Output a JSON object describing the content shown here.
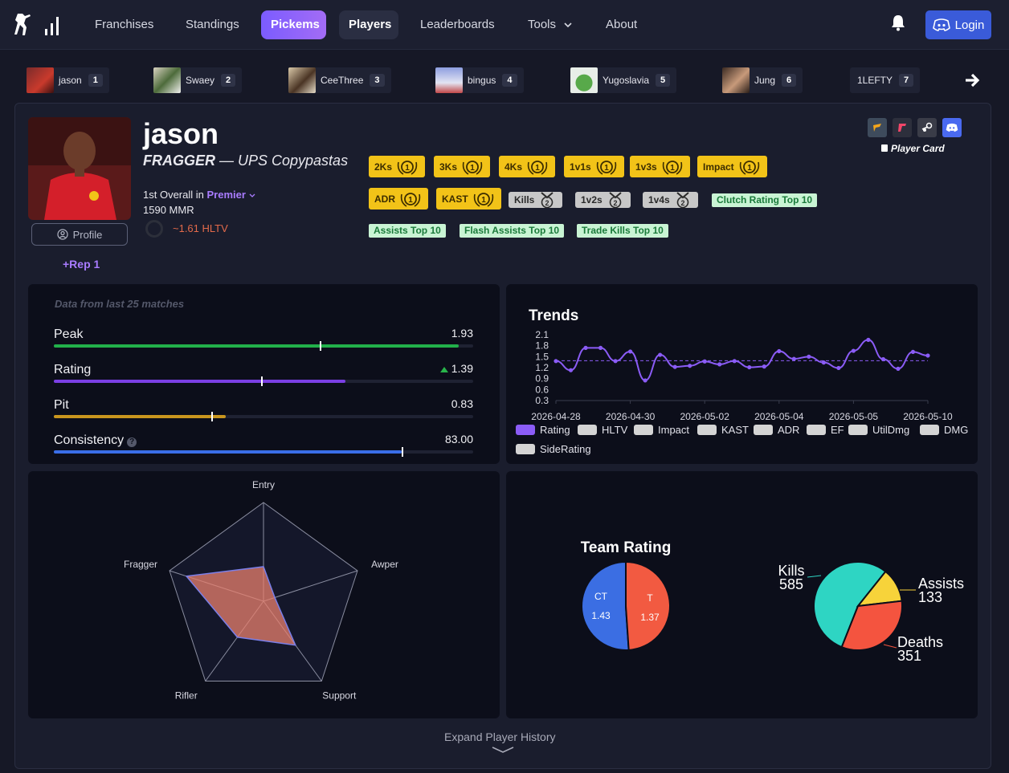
{
  "nav": {
    "items": [
      {
        "label": "Franchises"
      },
      {
        "label": "Standings"
      },
      {
        "label": "Pickems"
      },
      {
        "label": "Players"
      },
      {
        "label": "Leaderboards"
      },
      {
        "label": "Tools"
      },
      {
        "label": "About"
      }
    ],
    "login_label": "Login",
    "accent": "#7b5cff"
  },
  "leaders": [
    {
      "name": "jason",
      "rank": "1"
    },
    {
      "name": "Swaey",
      "rank": "2"
    },
    {
      "name": "CeeThree",
      "rank": "3"
    },
    {
      "name": "bingus",
      "rank": "4"
    },
    {
      "name": "Yugoslavia",
      "rank": "5"
    },
    {
      "name": "Jung",
      "rank": "6"
    },
    {
      "name": "1LEFTY",
      "rank": "7"
    }
  ],
  "player": {
    "name": "jason",
    "role": "FRAGGER",
    "team": " — UPS Copypastas",
    "overall_prefix": "1st Overall in",
    "overall_league": "Premier",
    "mmr": "1590 MMR",
    "hltv": "~1.61 HLTV",
    "profile_label": "Profile",
    "rep": "+Rep 1",
    "player_card": "Player Card"
  },
  "badges": {
    "gold": [
      "2Ks",
      "3Ks",
      "4Ks",
      "1v1s",
      "1v3s",
      "Impact",
      "ADR",
      "KAST"
    ],
    "silver": [
      "Kills",
      "1v2s",
      "1v4s"
    ],
    "tags": [
      "Clutch Rating Top 10",
      "Assists Top 10",
      "Flash Assists Top 10",
      "Trade Kills Top 10"
    ]
  },
  "stats": {
    "note": "Data from last 25 matches",
    "rows": [
      {
        "label": "Peak",
        "value": "1.93",
        "fill": 0.965,
        "marker": 0.635,
        "color": "#22b04a"
      },
      {
        "label": "Rating",
        "value": "1.39",
        "fill": 0.695,
        "marker": 0.495,
        "color": "#7b3fe4",
        "trend": "up"
      },
      {
        "label": "Pit",
        "value": "0.83",
        "fill": 0.41,
        "marker": 0.375,
        "color": "#c9961e"
      },
      {
        "label": "Consistency",
        "value": "83.00",
        "fill": 0.83,
        "marker": 0.83,
        "color": "#3a6ee8",
        "help": true
      }
    ]
  },
  "trends": {
    "title": "Trends",
    "legend": [
      "Rating",
      "HLTV",
      "Impact",
      "KAST",
      "ADR",
      "EF",
      "UtilDmg",
      "DMG",
      "SideRating"
    ],
    "legend_active_color": "#8b5cf6",
    "legend_inactive_color": "#d4d4d4"
  },
  "radar": {
    "axes": [
      "Entry",
      "Awper",
      "Support",
      "Rifler",
      "Fragger"
    ],
    "values": [
      0.35,
      0.12,
      0.55,
      0.45,
      0.82
    ]
  },
  "team_rating": {
    "title": "Team Rating",
    "ct_label": "CT",
    "ct_value": "1.43",
    "ct_color": "#3b6ee3",
    "t_label": "T",
    "t_value": "1.37",
    "t_color": "#f25a41"
  },
  "kda": {
    "kills_label": "Kills",
    "kills": "585",
    "kills_color": "#2ed5c3",
    "assists_label": "Assists",
    "assists": "133",
    "assists_color": "#f7d33a",
    "deaths_label": "Deaths",
    "deaths": "351",
    "deaths_color": "#f4543f"
  },
  "expand_label": "Expand Player History",
  "chart_data": [
    {
      "type": "line",
      "title": "Trends",
      "series": [
        {
          "name": "Rating",
          "values": [
            1.38,
            1.13,
            1.74,
            1.74,
            1.38,
            1.64,
            0.85,
            1.55,
            1.22,
            1.25,
            1.37,
            1.29,
            1.38,
            1.21,
            1.23,
            1.65,
            1.44,
            1.5,
            1.34,
            1.19,
            1.66,
            1.96,
            1.43,
            1.17,
            1.63,
            1.53
          ]
        }
      ],
      "x_tick_labels": [
        "2026-04-28",
        "2026-04-30",
        "2026-05-02",
        "2026-05-04",
        "2026-05-05",
        "2026-05-10"
      ],
      "y_ticks": [
        0.3,
        0.6,
        0.9,
        1.2,
        1.5,
        1.8,
        2.1
      ],
      "ylim": [
        0.3,
        2.1
      ],
      "reference_line": 1.39,
      "grid": false,
      "legend_placement": "bottom"
    },
    {
      "type": "radar",
      "categories": [
        "Entry",
        "Awper",
        "Support",
        "Rifler",
        "Fragger"
      ],
      "values": [
        0.35,
        0.12,
        0.55,
        0.45,
        0.82
      ]
    },
    {
      "type": "pie",
      "title": "Team Rating",
      "categories": [
        "CT",
        "T"
      ],
      "values": [
        1.43,
        1.37
      ]
    },
    {
      "type": "pie",
      "categories": [
        "Kills",
        "Assists",
        "Deaths"
      ],
      "values": [
        585,
        133,
        351
      ]
    }
  ]
}
